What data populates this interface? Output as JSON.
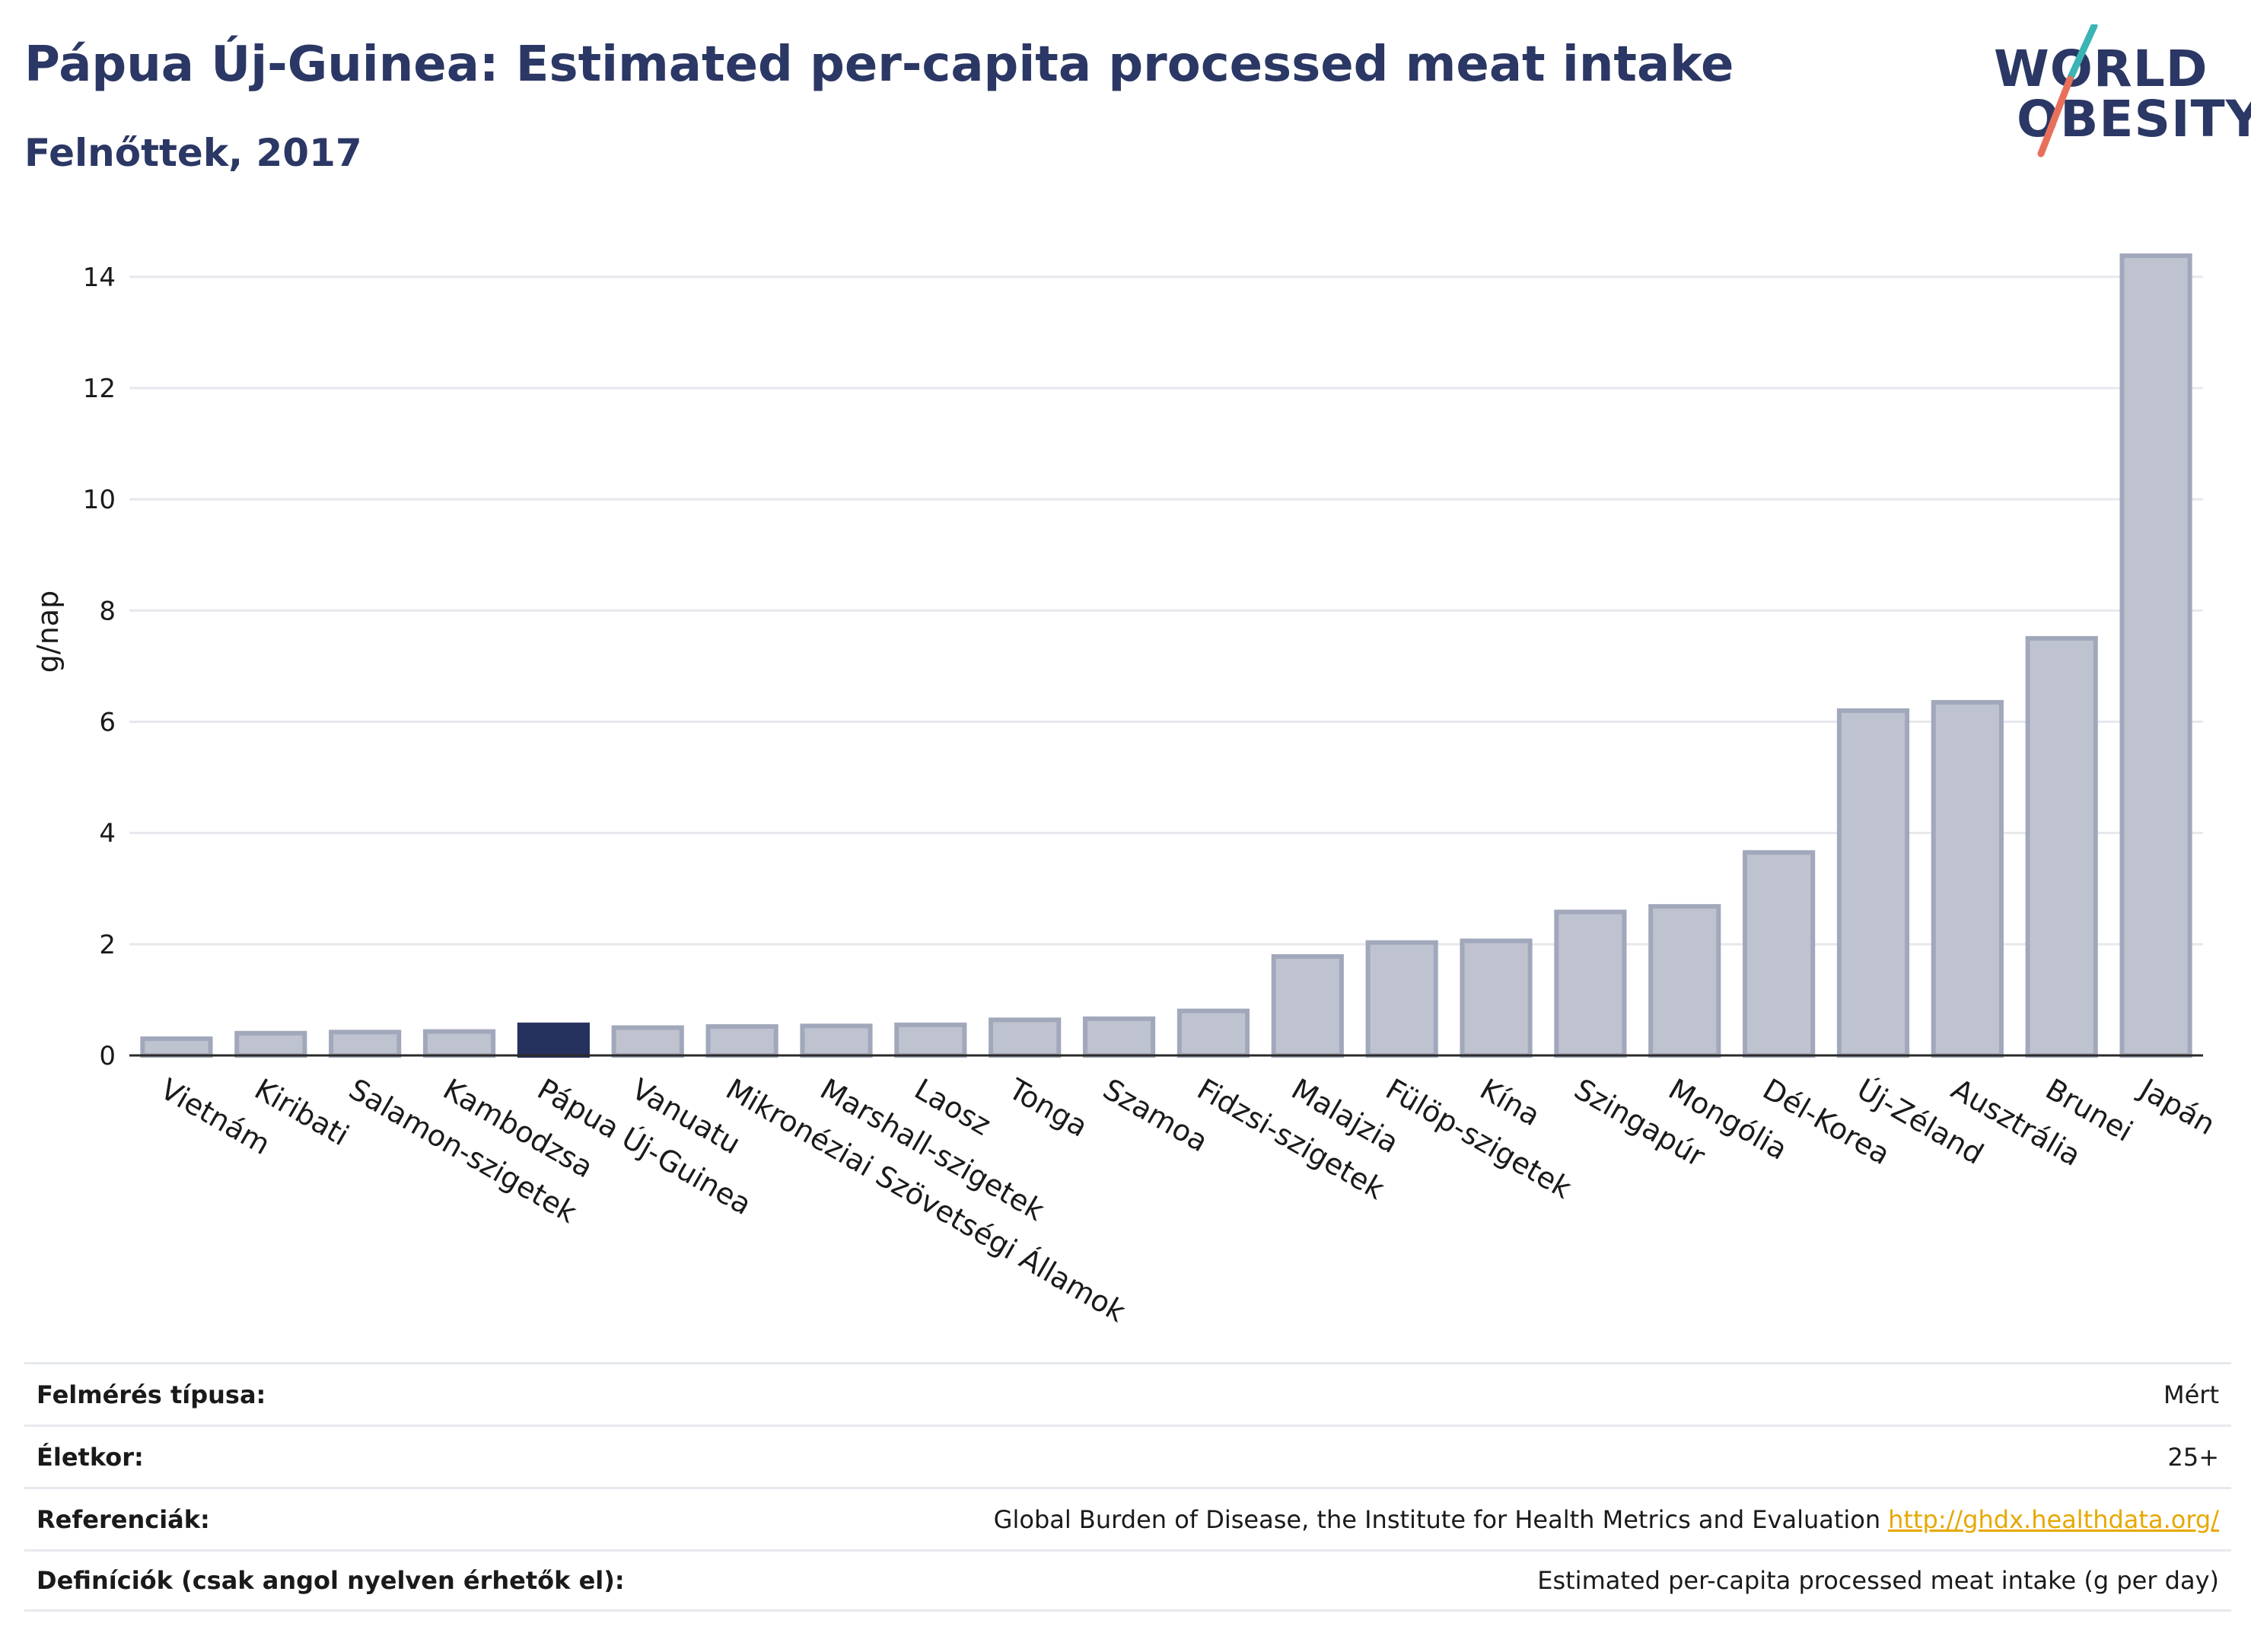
{
  "header": {
    "title": "Pápua Új-Guinea: Estimated per-capita processed meat intake",
    "subtitle": "Felnőttek, 2017"
  },
  "logo": {
    "line1": "WORLD",
    "line2": "OBESITY",
    "colors": {
      "text": "#2b3764",
      "slash_top": "#3ab4b4",
      "slash_bottom": "#e8705a"
    }
  },
  "colors": {
    "bar_default": "#bfc3d0",
    "bar_default_stroke": "#a2a8bb",
    "bar_highlight": "#26325e",
    "grid": "#e6e8ed",
    "axis": "#2b2b2b"
  },
  "chart_data": {
    "type": "bar",
    "ylabel": "g/nap",
    "ylim": [
      0,
      14.6
    ],
    "yticks": [
      0,
      2,
      4,
      6,
      8,
      10,
      12,
      14
    ],
    "grid": true,
    "highlight": "Pápua Új-Guinea",
    "categories": [
      "Vietnám",
      "Kiribati",
      "Salamon-szigetek",
      "Kambodzsa",
      "Pápua Új-Guinea",
      "Vanuatu",
      "Mikronéziai Szövetségi Államok",
      "Marshall-szigetek",
      "Laosz",
      "Tonga",
      "Szamoa",
      "Fidzsi-szigetek",
      "Malajzia",
      "Fülöp-szigetek",
      "Kína",
      "Szingapúr",
      "Mongólia",
      "Dél-Korea",
      "Új-Zéland",
      "Ausztrália",
      "Brunei",
      "Japán"
    ],
    "values": [
      0.3,
      0.4,
      0.42,
      0.43,
      0.55,
      0.5,
      0.52,
      0.53,
      0.55,
      0.64,
      0.66,
      0.8,
      1.78,
      2.03,
      2.06,
      2.58,
      2.68,
      3.65,
      6.2,
      6.35,
      7.5,
      14.38
    ]
  },
  "info": {
    "rows": [
      {
        "label": "Felmérés típusa:",
        "value": "Mért"
      },
      {
        "label": "Életkor:",
        "value": "25+"
      },
      {
        "label": "Referenciák:",
        "value": "Global Burden of Disease, the Institute for Health Metrics and Evaluation",
        "link": "http://ghdx.healthdata.org/"
      },
      {
        "label": "Definíciók (csak angol nyelven érhetők el):",
        "value": "Estimated per-capita processed meat intake (g per day)"
      }
    ]
  }
}
